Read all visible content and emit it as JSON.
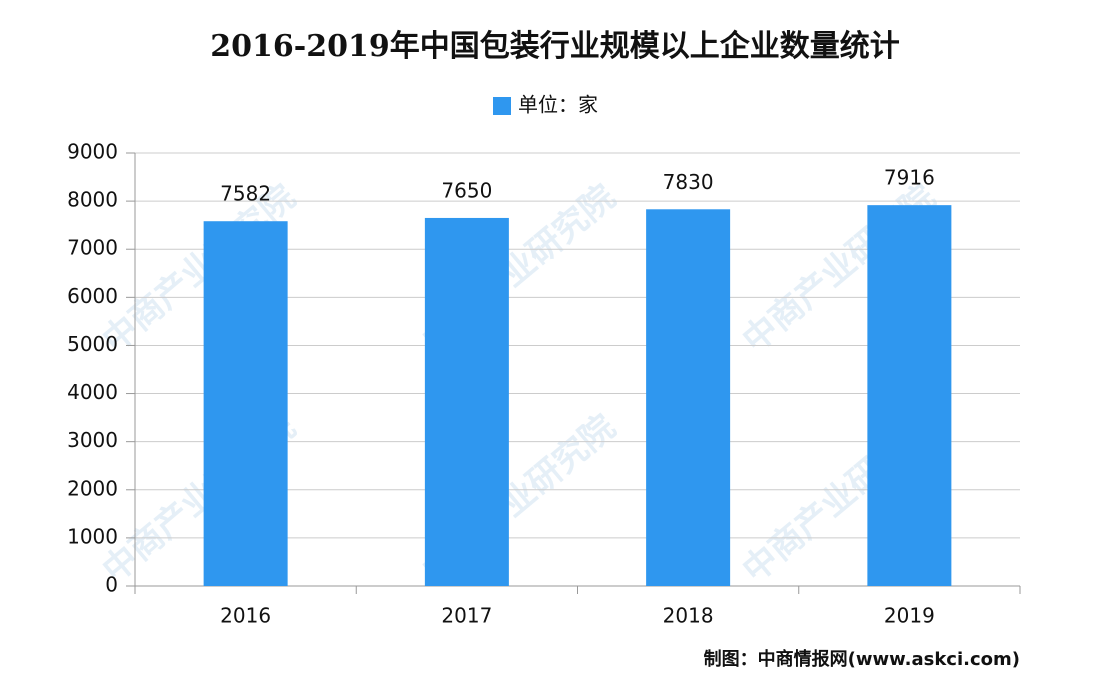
{
  "chart_data": {
    "type": "bar",
    "title": "2016-2019年中国包装行业规模以上企业数量统计",
    "categories": [
      "2016",
      "2017",
      "2018",
      "2019"
    ],
    "series": [
      {
        "name": "单位：家",
        "color": "#2f97ef",
        "values": [
          7582,
          7650,
          7830,
          7916
        ]
      }
    ],
    "ylim": [
      0,
      9000
    ],
    "yticks": [
      0,
      1000,
      2000,
      3000,
      4000,
      5000,
      6000,
      7000,
      8000,
      9000
    ],
    "grid": true,
    "legend": "top",
    "source": "制图：中商情报网(www.askci.com)",
    "watermark": "中商产业研究院"
  }
}
